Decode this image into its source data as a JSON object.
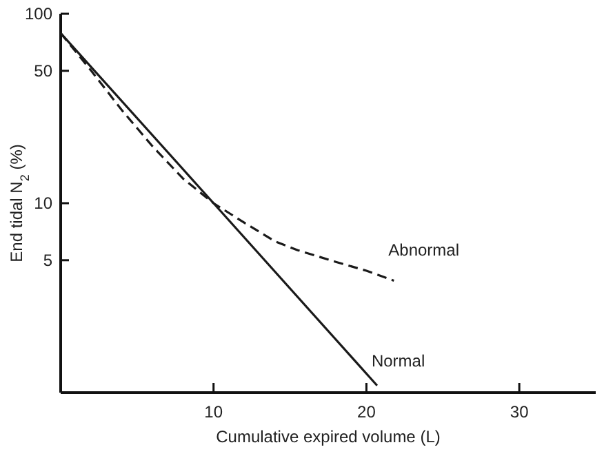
{
  "chart_data": {
    "type": "line",
    "xlabel": "Cumulative expired volume (L)",
    "ylabel": "End tidal N$_{2}$ (%)",
    "log": "y",
    "xlim": [
      0,
      35
    ],
    "ylim": [
      1,
      100
    ],
    "xticks": [
      10,
      20,
      30
    ],
    "yticks": [
      5,
      10,
      50,
      100
    ],
    "legend": false,
    "series": [
      {
        "name": "Abnormal",
        "color": "#1a1a1a",
        "line_style": "dashed",
        "x": [
          0,
          2,
          4,
          6,
          8,
          10,
          12,
          14,
          15.5,
          18,
          20,
          21.8
        ],
        "values": [
          79,
          50,
          31,
          20,
          13.5,
          10,
          7.9,
          6.3,
          5.65,
          4.9,
          4.4,
          3.9
        ]
      },
      {
        "name": "Normal",
        "color": "#1a1a1a",
        "line_style": "solid",
        "x": [
          0,
          10,
          20.7
        ],
        "values": [
          79,
          10,
          1.09
        ]
      }
    ]
  }
}
